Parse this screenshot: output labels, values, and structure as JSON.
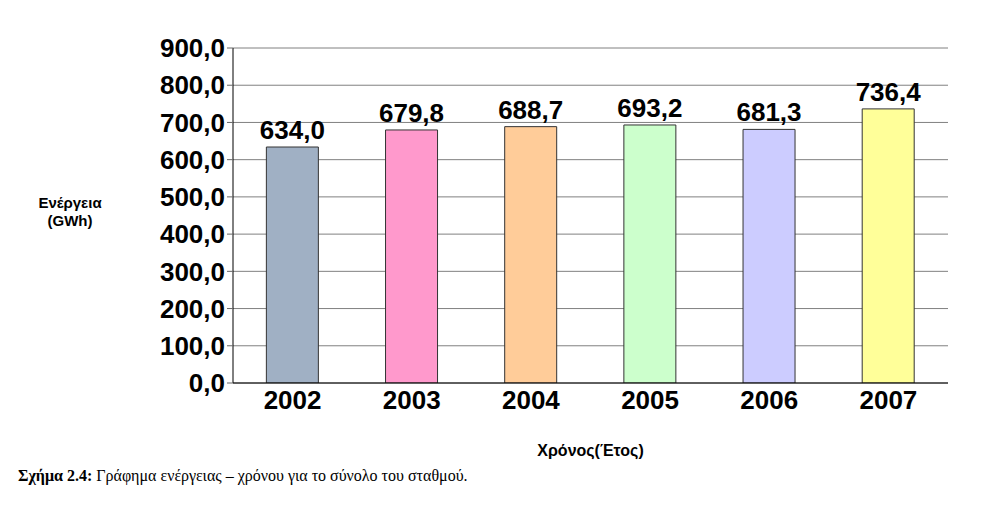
{
  "chart_data": {
    "type": "bar",
    "categories": [
      "2002",
      "2003",
      "2004",
      "2005",
      "2006",
      "2007"
    ],
    "values": [
      634.0,
      679.8,
      688.7,
      693.2,
      681.3,
      736.4
    ],
    "value_labels": [
      "634,0",
      "679,8",
      "688,7",
      "693,2",
      "681,3",
      "736,4"
    ],
    "data_labels": true,
    "colors": [
      "#a0b0c4",
      "#ff99cc",
      "#ffcc99",
      "#ccffcc",
      "#ccccff",
      "#ffff99"
    ],
    "ylim": [
      0,
      900
    ],
    "yticks": [
      {
        "value": 0,
        "label": "0,0"
      },
      {
        "value": 100,
        "label": "100,0"
      },
      {
        "value": 200,
        "label": "200,0"
      },
      {
        "value": 300,
        "label": "300,0"
      },
      {
        "value": 400,
        "label": "400,0"
      },
      {
        "value": 500,
        "label": "500,0"
      },
      {
        "value": 600,
        "label": "600,0"
      },
      {
        "value": 700,
        "label": "700,0"
      },
      {
        "value": 800,
        "label": "800,0"
      },
      {
        "value": 900,
        "label": "900,0"
      }
    ],
    "grid": true,
    "y_label": "Ενέργεια (GWh)",
    "x_label": "Χρόνος(Έτος)",
    "caption_label": "Σχήμα 2.4:",
    "caption": "Γράφημα ενέργειας – χρόνου για το σύνολο του σταθμού."
  }
}
